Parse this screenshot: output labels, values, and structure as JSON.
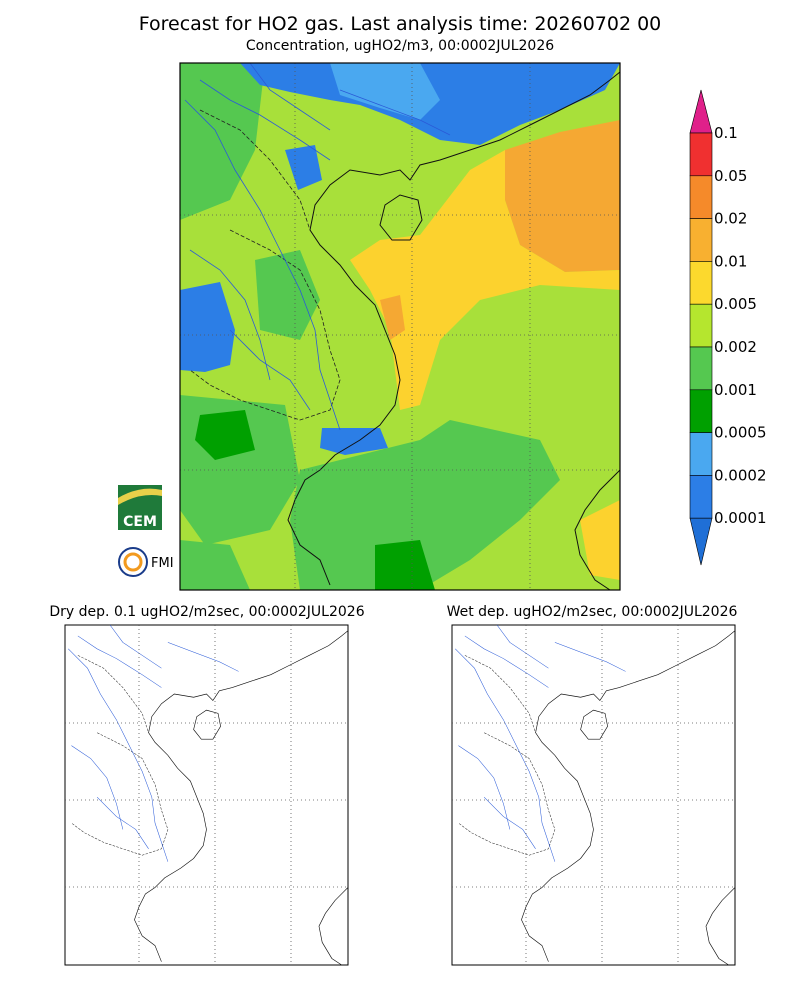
{
  "header": {
    "title": "Forecast for HO2 gas. Last analysis time: 20260702 00",
    "subtitle": "Concentration, ugHO2/m3, 00:0002JUL2026"
  },
  "colorbar": {
    "labels": [
      "0.1",
      "0.05",
      "0.02",
      "0.01",
      "0.005",
      "0.002",
      "0.001",
      "0.0005",
      "0.0002",
      "0.0001"
    ]
  },
  "panels": [
    {
      "title": "Dry dep. 0.1 ugHO2/m2sec, 00:0002JUL2026"
    },
    {
      "title": "Wet dep. ugHO2/m2sec, 00:0002JUL2026"
    }
  ],
  "logos": [
    "CEM",
    "FMI"
  ]
}
